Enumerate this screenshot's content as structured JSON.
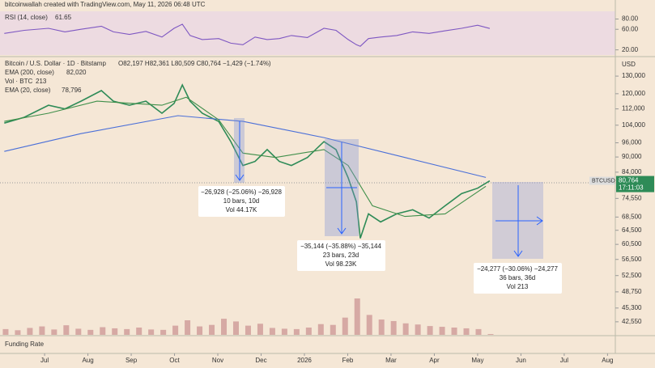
{
  "watermark": "bitcoinwallah created with TradingView.com, May 11, 2026 06:48 UTC",
  "funding_label": "Funding Rate",
  "chart_data": [
    {
      "type": "line",
      "xlim": [
        -1.03,
        13.18
      ],
      "ylim": [
        10,
        95
      ],
      "yticks": [
        {
          "value": 80,
          "label": "80.00"
        },
        {
          "value": 60,
          "label": "60.00"
        },
        {
          "value": 20,
          "label": "20.00"
        }
      ],
      "series": [
        {
          "name": "RSI (14, close)",
          "last_label": "61.65",
          "color": "#7e57c2",
          "x": [
            -0.93,
            -0.47,
            0.09,
            0.47,
            0.84,
            1.31,
            1.59,
            1.96,
            2.34,
            2.71,
            2.99,
            3.18,
            3.36,
            3.64,
            4.02,
            4.3,
            4.58,
            4.86,
            5.14,
            5.42,
            5.7,
            6.07,
            6.45,
            6.73,
            7.01,
            7.2,
            7.29,
            7.48,
            7.76,
            8.13,
            8.5,
            8.88,
            9.25,
            9.63,
            10.0,
            10.28
          ],
          "values": [
            52,
            58,
            62,
            55,
            60,
            66,
            55,
            50,
            56,
            45,
            62,
            70,
            48,
            40,
            42,
            33,
            30,
            45,
            40,
            42,
            48,
            44,
            62,
            58,
            40,
            30,
            27,
            42,
            45,
            48,
            55,
            52,
            57,
            62,
            68,
            61.65
          ]
        }
      ]
    },
    {
      "type": "line",
      "title": "Bitcoin / U.S. Dollar · 1D · Bitstamp",
      "ohlc": "O82,197 H82,361 L80,509 C80,764 −1,429 (−1.74%)",
      "y_label": "USD",
      "log_scale": true,
      "xlim": [
        -1.03,
        13.18
      ],
      "ylim": [
        40100,
        141000
      ],
      "xticks": [
        {
          "value": 0,
          "label": "Jul"
        },
        {
          "value": 1,
          "label": "Aug"
        },
        {
          "value": 2,
          "label": "Sep"
        },
        {
          "value": 3,
          "label": "Oct"
        },
        {
          "value": 4,
          "label": "Nov"
        },
        {
          "value": 5,
          "label": "Dec"
        },
        {
          "value": 6,
          "label": "2026"
        },
        {
          "value": 7,
          "label": "Feb"
        },
        {
          "value": 8,
          "label": "Mar"
        },
        {
          "value": 9,
          "label": "Apr"
        },
        {
          "value": 10,
          "label": "May"
        },
        {
          "value": 11,
          "label": "Jun"
        },
        {
          "value": 12,
          "label": "Jul"
        },
        {
          "value": 13,
          "label": "Aug"
        }
      ],
      "yticks": [
        {
          "value": 130000,
          "label": "130,000"
        },
        {
          "value": 120000,
          "label": "120,000"
        },
        {
          "value": 112000,
          "label": "112,000"
        },
        {
          "value": 104000,
          "label": "104,000"
        },
        {
          "value": 96000,
          "label": "96,000"
        },
        {
          "value": 90000,
          "label": "90,000"
        },
        {
          "value": 84000,
          "label": "84,000"
        },
        {
          "value": 74550,
          "label": "74,550"
        },
        {
          "value": 68500,
          "label": "68,500"
        },
        {
          "value": 64500,
          "label": "64,500"
        },
        {
          "value": 60500,
          "label": "60,500"
        },
        {
          "value": 56500,
          "label": "56,500"
        },
        {
          "value": 52500,
          "label": "52,500"
        },
        {
          "value": 48750,
          "label": "48,750"
        },
        {
          "value": 45300,
          "label": "45,300"
        },
        {
          "value": 42550,
          "label": "42,550"
        }
      ],
      "series": [
        {
          "name": "BTCUSD",
          "last_label": "80,764",
          "countdown": "17:11:03",
          "color": "#2e8b57",
          "x": [
            -0.93,
            -0.47,
            0.09,
            0.47,
            0.84,
            1.31,
            1.59,
            1.96,
            2.34,
            2.71,
            2.99,
            3.18,
            3.36,
            3.64,
            4.02,
            4.3,
            4.58,
            4.86,
            5.14,
            5.42,
            5.7,
            6.07,
            6.45,
            6.73,
            7.01,
            7.2,
            7.29,
            7.48,
            7.76,
            8.13,
            8.5,
            8.88,
            9.25,
            9.63,
            10.0,
            10.28
          ],
          "values": [
            105000,
            107800,
            113900,
            112000,
            116000,
            121700,
            116000,
            113900,
            116000,
            109800,
            114800,
            124900,
            116000,
            109800,
            105800,
            96500,
            86600,
            88200,
            93100,
            88200,
            86600,
            89800,
            96500,
            93100,
            81900,
            73400,
            62200,
            69500,
            67000,
            69500,
            70800,
            68200,
            72100,
            76200,
            78100,
            80764
          ]
        },
        {
          "name": "EMA (200, close)",
          "last_label": "82,020",
          "color": "#4a6fd8",
          "x": [
            -0.93,
            0.84,
            3.08,
            4.58,
            6.45,
            8.32,
            10.19
          ],
          "values": [
            92300,
            100100,
            108600,
            105800,
            98300,
            89800,
            82020
          ]
        },
        {
          "name": "EMA (20, close)",
          "last_label": "78,796",
          "color": "#3f8f4a",
          "x": [
            -0.93,
            0.09,
            1.21,
            2.71,
            3.27,
            4.02,
            4.58,
            5.33,
            6.45,
            7.01,
            7.57,
            8.32,
            9.25,
            10.19
          ],
          "values": [
            105800,
            109800,
            116000,
            113900,
            118100,
            106600,
            91600,
            89800,
            93100,
            86600,
            72100,
            68700,
            69500,
            78796
          ]
        }
      ],
      "volume": {
        "name": "Vol · BTC",
        "last_label": "213",
        "color": "#c98f8f",
        "x": [
          -0.9,
          -0.62,
          -0.34,
          -0.06,
          0.22,
          0.5,
          0.78,
          1.06,
          1.34,
          1.62,
          1.9,
          2.18,
          2.46,
          2.74,
          3.02,
          3.3,
          3.58,
          3.86,
          4.14,
          4.42,
          4.7,
          4.98,
          5.26,
          5.54,
          5.82,
          6.1,
          6.38,
          6.66,
          6.94,
          7.22,
          7.5,
          7.78,
          8.06,
          8.34,
          8.62,
          8.9,
          9.18,
          9.46,
          9.74,
          10.02,
          10.3
        ],
        "values": [
          1500,
          1200,
          1800,
          2200,
          1400,
          2500,
          1600,
          1300,
          2000,
          1700,
          1500,
          1900,
          1400,
          1300,
          2400,
          3800,
          2200,
          2600,
          4200,
          3500,
          2400,
          2900,
          1800,
          1600,
          1500,
          1900,
          2800,
          2600,
          4500,
          9500,
          5200,
          4000,
          3600,
          3000,
          2700,
          2300,
          2100,
          1900,
          1700,
          1500,
          213
        ]
      },
      "annotations": [
        {
          "lines": [
            "−26,928 (−25.06%) −26,928",
            "10 bars, 10d",
            "Vol 44.17K"
          ]
        },
        {
          "lines": [
            "−35,144 (−35.88%) −35,144",
            "23 bars, 23d",
            "Vol 98.23K"
          ]
        },
        {
          "lines": [
            "−24,277 (−30.06%) −24,277",
            "36 bars, 36d",
            "Vol 213"
          ]
        }
      ]
    }
  ]
}
